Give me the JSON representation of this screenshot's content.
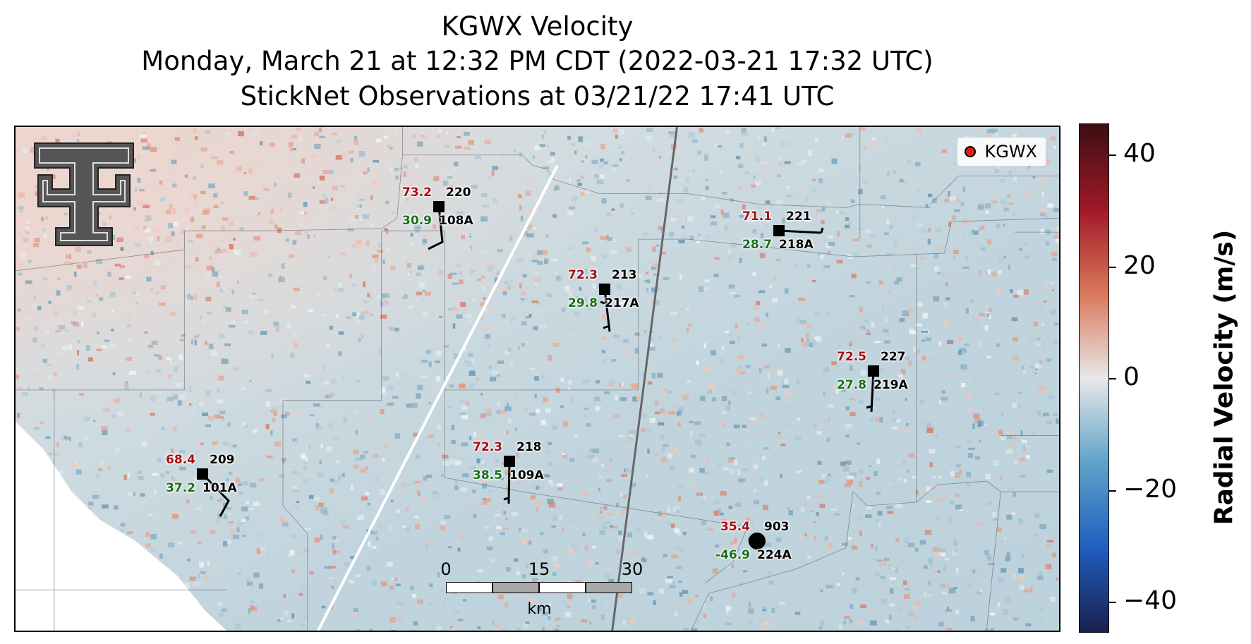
{
  "title": {
    "line1": "KGWX Velocity",
    "line2": "Monday, March 21 at 12:32 PM CDT (2022-03-21 17:32 UTC)",
    "line3": "StickNet Observations at 03/21/22 17:41 UTC"
  },
  "legend": {
    "label": "KGWX",
    "marker_color": "#e31a1c"
  },
  "scale_bar": {
    "ticks": [
      "0",
      "15",
      "30"
    ],
    "unit": "km"
  },
  "logo": {
    "name": "texas-tech-double-t-logo"
  },
  "colorbar": {
    "label": "Radial Velocity (m/s)",
    "ticks": [
      "40",
      "20",
      "0",
      "−20",
      "−40"
    ],
    "range": [
      -45,
      45
    ],
    "colors": [
      "#1a2050",
      "#1f5fbf",
      "#5fa3c9",
      "#e8e8e8",
      "#d9785a",
      "#a01828",
      "#3a0f12"
    ]
  },
  "stations": [
    {
      "id": "220",
      "num": "108A",
      "temp": "73.2",
      "dew": "30.9",
      "marker": "square"
    },
    {
      "id": "213",
      "num": "217A",
      "temp": "72.3",
      "dew": "29.8",
      "marker": "square"
    },
    {
      "id": "221",
      "num": "218A",
      "temp": "71.1",
      "dew": "28.7",
      "marker": "square"
    },
    {
      "id": "227",
      "num": "219A",
      "temp": "72.5",
      "dew": "27.8",
      "marker": "square"
    },
    {
      "id": "209",
      "num": "101A",
      "temp": "68.4",
      "dew": "37.2",
      "marker": "square"
    },
    {
      "id": "218",
      "num": "109A",
      "temp": "72.3",
      "dew": "38.5",
      "marker": "square"
    },
    {
      "id": "903",
      "num": "224A",
      "temp": "35.4",
      "dew": "-46.9",
      "marker": "circle"
    }
  ]
}
